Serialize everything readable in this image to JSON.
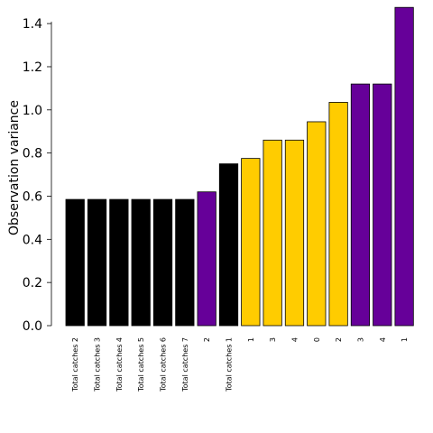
{
  "chart_data": {
    "type": "bar",
    "ylabel": "Observation variance",
    "xlabel": "",
    "ylim": [
      0,
      1.48
    ],
    "yticks": [
      "0.0",
      "0.2",
      "0.4",
      "0.6",
      "0.8",
      "1.0",
      "1.2",
      "1.4"
    ],
    "grid": false,
    "categories": [
      "Total catches 2",
      "Total catches 3",
      "Total catches 4",
      "Total catches 5",
      "Total catches 6",
      "Total catches 7",
      "2",
      "Total catches 1",
      "1",
      "3",
      "4",
      "0",
      "2",
      "3",
      "4",
      "1"
    ],
    "values": [
      0.585,
      0.585,
      0.585,
      0.585,
      0.585,
      0.585,
      0.62,
      0.75,
      0.775,
      0.86,
      0.86,
      0.945,
      1.035,
      1.12,
      1.12,
      1.475
    ],
    "bar_colors": [
      "#000000",
      "#000000",
      "#000000",
      "#000000",
      "#000000",
      "#000000",
      "#660099",
      "#000000",
      "#ffcc00",
      "#ffcc00",
      "#ffcc00",
      "#ffcc00",
      "#ffcc00",
      "#660099",
      "#660099",
      "#660099"
    ],
    "edge_color": "#000000"
  }
}
